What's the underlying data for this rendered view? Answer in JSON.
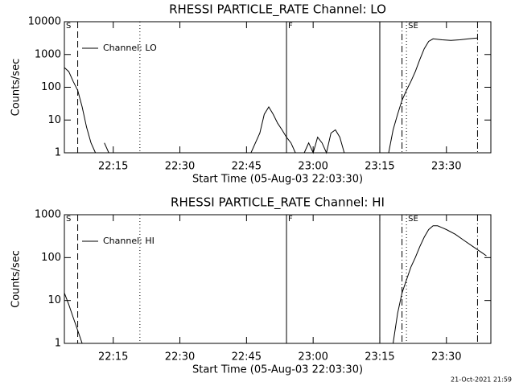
{
  "chart_data": [
    {
      "type": "line",
      "title": "RHESSI PARTICLE_RATE Channel: LO",
      "xlabel": "Start Time (05-Aug-03 22:03:30)",
      "ylabel": "Counts/sec",
      "log_y": true,
      "xlim": [
        "22:04",
        "23:40"
      ],
      "xticks": [
        "22:15",
        "22:30",
        "22:45",
        "23:00",
        "23:15",
        "23:30"
      ],
      "ylim": [
        1,
        10000
      ],
      "yticks": [
        1,
        10,
        100,
        1000,
        10000
      ],
      "legend": "upper left",
      "series": [
        {
          "name": "Channel: LO",
          "color": "#000000",
          "x": [
            "22:04",
            "22:05",
            "22:06",
            "22:07",
            "22:08",
            "22:09",
            "22:10",
            "22:11",
            "22:12",
            "22:13",
            "22:14",
            "22:15",
            "22:46",
            "22:47",
            "22:48",
            "22:49",
            "22:50",
            "22:51",
            "22:52",
            "22:53",
            "22:54",
            "22:55",
            "22:56",
            "22:57",
            "22:58",
            "22:59",
            "23:00",
            "23:01",
            "23:02",
            "23:03",
            "23:04",
            "23:05",
            "23:06",
            "23:07",
            "23:08",
            "23:17",
            "23:18",
            "23:19",
            "23:20",
            "23:21",
            "23:22",
            "23:23",
            "23:24",
            "23:25",
            "23:26",
            "23:27",
            "23:29",
            "23:31",
            "23:33",
            "23:35",
            "23:37"
          ],
          "values": [
            400,
            300,
            150,
            80,
            25,
            6,
            2,
            1,
            null,
            2,
            1,
            null,
            1,
            2,
            4,
            15,
            25,
            15,
            8,
            5,
            3,
            2,
            1,
            null,
            1,
            2,
            1,
            3,
            2,
            1,
            4,
            5,
            3,
            1,
            null,
            1,
            5,
            15,
            40,
            80,
            150,
            300,
            700,
            1500,
            2500,
            3000,
            2800,
            2700,
            2800,
            3000,
            3200
          ]
        }
      ],
      "vlines": [
        {
          "x": "22:07",
          "style": "dashed"
        },
        {
          "x": "22:21",
          "style": "dotted"
        },
        {
          "x": "22:54",
          "style": "solid"
        },
        {
          "x": "23:15",
          "style": "solid"
        },
        {
          "x": "23:20",
          "style": "dashdot"
        },
        {
          "x": "23:21",
          "style": "dotted"
        },
        {
          "x": "23:37",
          "style": "dashdot"
        }
      ],
      "annotations": [
        {
          "text": "S",
          "x": "22:04"
        },
        {
          "text": "F",
          "x": "22:54"
        },
        {
          "text": "SE",
          "x": "23:21"
        }
      ]
    },
    {
      "type": "line",
      "title": "RHESSI PARTICLE_RATE Channel: HI",
      "xlabel": "Start Time (05-Aug-03 22:03:30)",
      "ylabel": "Counts/sec",
      "log_y": true,
      "xlim": [
        "22:04",
        "23:40"
      ],
      "xticks": [
        "22:15",
        "22:30",
        "22:45",
        "23:00",
        "23:15",
        "23:30"
      ],
      "ylim": [
        1,
        1000
      ],
      "yticks": [
        1,
        10,
        100,
        1000
      ],
      "legend": "upper left",
      "series": [
        {
          "name": "Channel: HI",
          "color": "#000000",
          "x": [
            "22:04",
            "22:05",
            "22:06",
            "22:07",
            "22:08",
            "22:09",
            "23:18",
            "23:19",
            "23:20",
            "23:21",
            "23:22",
            "23:23",
            "23:24",
            "23:25",
            "23:26",
            "23:27",
            "23:28",
            "23:29",
            "23:30",
            "23:32",
            "23:34",
            "23:36",
            "23:38",
            "23:39"
          ],
          "values": [
            15,
            8,
            4,
            2,
            1,
            null,
            1,
            5,
            15,
            30,
            60,
            100,
            180,
            300,
            450,
            550,
            550,
            500,
            450,
            350,
            250,
            180,
            130,
            110
          ]
        }
      ],
      "vlines": [
        {
          "x": "22:07",
          "style": "dashed"
        },
        {
          "x": "22:21",
          "style": "dotted"
        },
        {
          "x": "22:54",
          "style": "solid"
        },
        {
          "x": "23:15",
          "style": "solid"
        },
        {
          "x": "23:20",
          "style": "dashdot"
        },
        {
          "x": "23:21",
          "style": "dotted"
        },
        {
          "x": "23:37",
          "style": "dashdot"
        }
      ],
      "annotations": [
        {
          "text": "S",
          "x": "22:04"
        },
        {
          "text": "F",
          "x": "22:54"
        },
        {
          "text": "SE",
          "x": "23:21"
        }
      ]
    }
  ],
  "footer": "21-Oct-2021 21:59"
}
